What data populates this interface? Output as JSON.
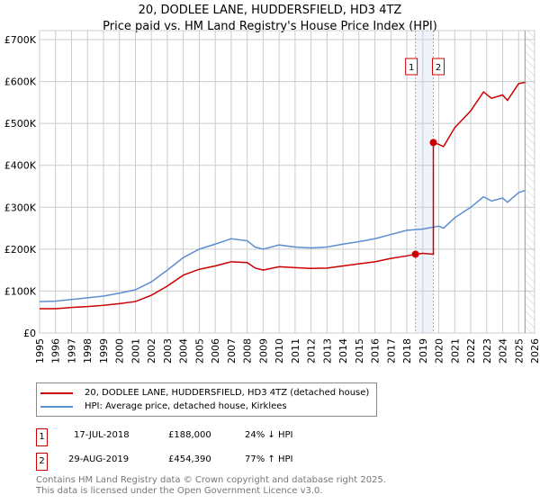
{
  "title": "20, DODLEE LANE, HUDDERSFIELD, HD3 4TZ",
  "subtitle": "Price paid vs. HM Land Registry's House Price Index (HPI)",
  "chart_data": {
    "type": "line",
    "xlim": [
      1995,
      2026
    ],
    "ylim": [
      0,
      700000
    ],
    "yticks": [
      {
        "v": 0,
        "l": "£0"
      },
      {
        "v": 100000,
        "l": "£100K"
      },
      {
        "v": 200000,
        "l": "£200K"
      },
      {
        "v": 300000,
        "l": "£300K"
      },
      {
        "v": 400000,
        "l": "£400K"
      },
      {
        "v": 500000,
        "l": "£500K"
      },
      {
        "v": 600000,
        "l": "£600K"
      },
      {
        "v": 700000,
        "l": "£700K"
      }
    ],
    "xticks": [
      "1995",
      "1996",
      "1997",
      "1998",
      "1999",
      "2000",
      "2001",
      "2002",
      "2003",
      "2004",
      "2005",
      "2006",
      "2007",
      "2008",
      "2009",
      "2010",
      "2011",
      "2012",
      "2013",
      "2014",
      "2015",
      "2016",
      "2017",
      "2018",
      "2019",
      "2020",
      "2021",
      "2022",
      "2023",
      "2024",
      "2025",
      "2026"
    ],
    "grid": true,
    "series": [
      {
        "name": "20, DODLEE LANE, HUDDERSFIELD, HD3 4TZ (detached house)",
        "color": "#cc0000",
        "x": [
          1995,
          1996,
          1997,
          1998,
          1999,
          2000,
          2001,
          2002,
          2003,
          2004,
          2005,
          2006,
          2007,
          2008,
          2008.5,
          2009,
          2010,
          2011,
          2012,
          2013,
          2014,
          2015,
          2016,
          2017,
          2018,
          2018.54,
          2019,
          2019.66,
          2019.66,
          2020,
          2020.3,
          2021,
          2022,
          2022.8,
          2023.3,
          2024,
          2024.3,
          2025,
          2025.4
        ],
        "y": [
          58000,
          58000,
          61000,
          63000,
          66000,
          70000,
          75000,
          90000,
          112000,
          138000,
          152000,
          160000,
          170000,
          168000,
          155000,
          150000,
          158000,
          156000,
          154000,
          155000,
          160000,
          165000,
          170000,
          178000,
          184000,
          188000,
          190000,
          188000,
          454390,
          450000,
          445000,
          490000,
          530000,
          575000,
          560000,
          568000,
          555000,
          595000,
          598000
        ]
      },
      {
        "name": "HPI: Average price, detached house, Kirklees",
        "color": "#5b8fd0",
        "x": [
          1995,
          1996,
          1997,
          1998,
          1999,
          2000,
          2001,
          2002,
          2003,
          2004,
          2005,
          2006,
          2007,
          2008,
          2008.5,
          2009,
          2010,
          2011,
          2012,
          2013,
          2014,
          2015,
          2016,
          2017,
          2018,
          2019,
          2020,
          2020.3,
          2021,
          2022,
          2022.8,
          2023.3,
          2024,
          2024.3,
          2025,
          2025.4
        ],
        "y": [
          75000,
          76000,
          80000,
          84000,
          88000,
          95000,
          103000,
          122000,
          150000,
          180000,
          200000,
          212000,
          225000,
          220000,
          205000,
          200000,
          210000,
          205000,
          203000,
          205000,
          212000,
          218000,
          225000,
          235000,
          245000,
          248000,
          255000,
          250000,
          275000,
          300000,
          325000,
          315000,
          322000,
          312000,
          335000,
          340000
        ]
      }
    ],
    "sales": [
      {
        "label": "1",
        "x": 2018.54,
        "y": 188000
      },
      {
        "label": "2",
        "x": 2019.66,
        "y": 454390
      }
    ],
    "forecast_start": 2025.4
  },
  "legend": {
    "red": "20, DODLEE LANE, HUDDERSFIELD, HD3 4TZ (detached house)",
    "blue": "HPI: Average price, detached house, Kirklees"
  },
  "transactions": [
    {
      "num": "1",
      "date": "17-JUL-2018",
      "price": "£188,000",
      "hpi": "24% ↓ HPI"
    },
    {
      "num": "2",
      "date": "29-AUG-2019",
      "price": "£454,390",
      "hpi": "77% ↑ HPI"
    }
  ],
  "footer": [
    "Contains HM Land Registry data © Crown copyright and database right 2025.",
    "This data is licensed under the Open Government Licence v3.0."
  ]
}
